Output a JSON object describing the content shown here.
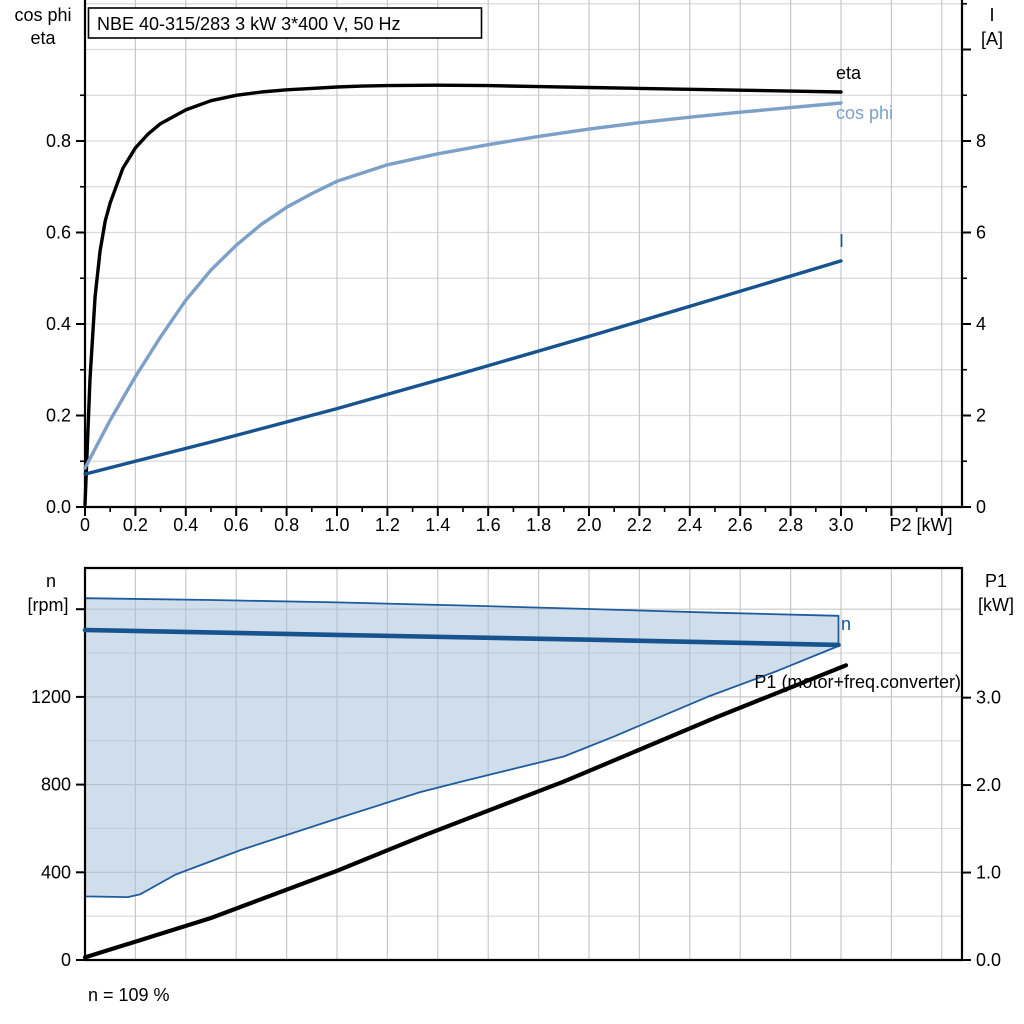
{
  "page": {
    "background": "#ffffff"
  },
  "colors": {
    "eta": "#000000",
    "cos_phi": "#7CA0C8",
    "current": "#17538E",
    "speed_line": "#17538E",
    "p1_line": "#000000",
    "envelope_fill": "rgba(164,191,216,0.52)",
    "envelope_stroke": "#1E5C9E",
    "grid_vertical": "#c8c8c8",
    "grid_horizontal_light": "#d9d9d9",
    "grid_horizontal_minor": "#dcdcdc",
    "axis": "#000000"
  },
  "chart_data": [
    {
      "id": "motor-efficiency-chart",
      "type": "line",
      "title": "NBE 40-315/283   3 kW   3*400 V, 50 Hz",
      "x_axis": {
        "label": "P2 [kW]",
        "min": 0,
        "max": 3.48,
        "major_tick_values": [
          0,
          0.2,
          0.4,
          0.6,
          0.8,
          1.0,
          1.2,
          1.4,
          1.6,
          1.8,
          2.0,
          2.2,
          2.4,
          2.6,
          2.8,
          3.0
        ],
        "major_tick_labels": [
          "0",
          "0.2",
          "0.4",
          "0.6",
          "0.8",
          "1.0",
          "1.2",
          "1.4",
          "1.6",
          "1.8",
          "2.0",
          "2.2",
          "2.4",
          "2.6",
          "2.8",
          "3.0"
        ],
        "extra_unlabeled_ticks": [
          3.2,
          3.4
        ],
        "minor_step": 0.1,
        "grid": true
      },
      "y_left": {
        "label_lines": [
          "cos phi",
          "eta"
        ],
        "min": 0,
        "max": 1.108,
        "tick_values": [
          0,
          0.2,
          0.4,
          0.6,
          0.8
        ],
        "tick_labels": [
          "0.0",
          "0.2",
          "0.4",
          "0.6",
          "0.8"
        ],
        "minor_tick_values": [
          0.1,
          0.3,
          0.5,
          0.7,
          0.9
        ],
        "grid_step": 0.1
      },
      "y_right": {
        "label_lines": [
          "I",
          "[A]"
        ],
        "min": 0,
        "max": 11.08,
        "tick_values": [
          0,
          2,
          4,
          6,
          8
        ],
        "tick_labels": [
          "0",
          "2",
          "4",
          "6",
          "8"
        ],
        "minor_tick_values": [
          1,
          3,
          5,
          7,
          9,
          11
        ],
        "extra_unlabeled_ticks": [
          10
        ]
      },
      "series": [
        {
          "name": "eta",
          "label": "eta",
          "axis": "left",
          "color": "#000000",
          "width": 3.4,
          "points": [
            [
              0,
              0.005
            ],
            [
              0.02,
              0.28
            ],
            [
              0.04,
              0.46
            ],
            [
              0.06,
              0.56
            ],
            [
              0.08,
              0.625
            ],
            [
              0.1,
              0.665
            ],
            [
              0.15,
              0.74
            ],
            [
              0.2,
              0.785
            ],
            [
              0.25,
              0.815
            ],
            [
              0.3,
              0.838
            ],
            [
              0.4,
              0.868
            ],
            [
              0.5,
              0.888
            ],
            [
              0.6,
              0.9
            ],
            [
              0.7,
              0.907
            ],
            [
              0.8,
              0.912
            ],
            [
              0.9,
              0.915
            ],
            [
              1.0,
              0.918
            ],
            [
              1.1,
              0.92
            ],
            [
              1.2,
              0.921
            ],
            [
              1.4,
              0.922
            ],
            [
              1.6,
              0.921
            ],
            [
              1.8,
              0.919
            ],
            [
              2.0,
              0.917
            ],
            [
              2.2,
              0.915
            ],
            [
              2.4,
              0.913
            ],
            [
              2.6,
              0.911
            ],
            [
              2.8,
              0.909
            ],
            [
              3.0,
              0.907
            ]
          ]
        },
        {
          "name": "cos phi",
          "label": "cos phi",
          "axis": "left",
          "color": "#7CA0C8",
          "width": 3.4,
          "points": [
            [
              0,
              0.085
            ],
            [
              0.1,
              0.19
            ],
            [
              0.2,
              0.285
            ],
            [
              0.3,
              0.372
            ],
            [
              0.4,
              0.452
            ],
            [
              0.5,
              0.518
            ],
            [
              0.6,
              0.572
            ],
            [
              0.7,
              0.618
            ],
            [
              0.8,
              0.655
            ],
            [
              0.9,
              0.685
            ],
            [
              1.0,
              0.712
            ],
            [
              1.2,
              0.748
            ],
            [
              1.4,
              0.772
            ],
            [
              1.6,
              0.792
            ],
            [
              1.8,
              0.81
            ],
            [
              2.0,
              0.826
            ],
            [
              2.2,
              0.84
            ],
            [
              2.4,
              0.852
            ],
            [
              2.6,
              0.863
            ],
            [
              2.8,
              0.873
            ],
            [
              3.0,
              0.883
            ]
          ]
        },
        {
          "name": "I",
          "label": "I",
          "axis": "right",
          "color": "#17538E",
          "width": 3.4,
          "points": [
            [
              0,
              0.72
            ],
            [
              0.5,
              1.42
            ],
            [
              1.0,
              2.15
            ],
            [
              1.5,
              2.93
            ],
            [
              2.0,
              3.73
            ],
            [
              2.5,
              4.55
            ],
            [
              3.0,
              5.38
            ]
          ]
        }
      ]
    },
    {
      "id": "speed-power-chart",
      "type": "line",
      "x_axis": {
        "label": "",
        "shared_with": "P2 [kW]",
        "min": 0,
        "max": 3.48,
        "grid": true
      },
      "y_left": {
        "label_lines": [
          "n",
          "[rpm]"
        ],
        "min": 0,
        "max": 1788,
        "tick_values": [
          0,
          400,
          800,
          1200
        ],
        "tick_labels": [
          "0",
          "400",
          "800",
          "1200"
        ],
        "unlabeled_tick_values": [
          1600
        ],
        "grid_major_values": [
          400,
          800,
          1200,
          1600
        ],
        "grid_minor_values": [
          200,
          600,
          1000,
          1400
        ]
      },
      "y_right": {
        "label_lines": [
          "P1",
          "[kW]"
        ],
        "min": 0,
        "max": 4.48,
        "tick_values": [
          0,
          1,
          2,
          3
        ],
        "tick_labels": [
          "0.0",
          "1.0",
          "2.0",
          "3.0"
        ]
      },
      "series": [
        {
          "name": "speed-envelope",
          "type": "band",
          "axis": "left",
          "fill": "rgba(164,191,216,0.52)",
          "stroke": "#1E5C9E",
          "stroke_width": 1.8,
          "upper": [
            [
              0,
              1650
            ],
            [
              0.5,
              1642
            ],
            [
              1.0,
              1631
            ],
            [
              1.5,
              1617
            ],
            [
              2.0,
              1601
            ],
            [
              2.5,
              1584
            ],
            [
              2.99,
              1570
            ]
          ],
          "lower": [
            [
              0,
              290
            ],
            [
              0.17,
              287
            ],
            [
              0.22,
              300
            ],
            [
              0.36,
              390
            ],
            [
              0.62,
              502
            ],
            [
              1.0,
              645
            ],
            [
              1.33,
              766
            ],
            [
              1.5,
              815
            ],
            [
              1.9,
              928
            ],
            [
              2.1,
              1020
            ],
            [
              2.47,
              1200
            ],
            [
              2.75,
              1320
            ],
            [
              2.99,
              1432
            ]
          ]
        },
        {
          "name": "n",
          "label": "n",
          "axis": "left",
          "color": "#17538E",
          "width": 4.6,
          "points": [
            [
              0,
              1505
            ],
            [
              1.0,
              1483
            ],
            [
              2.0,
              1461
            ],
            [
              2.99,
              1437
            ]
          ]
        },
        {
          "name": "P1",
          "label": "P1 (motor+freq.converter)",
          "axis": "right",
          "color": "#000000",
          "width": 4.2,
          "points": [
            [
              0,
              0.03
            ],
            [
              0.5,
              0.48
            ],
            [
              1.0,
              1.02
            ],
            [
              1.35,
              1.43
            ],
            [
              1.9,
              2.04
            ],
            [
              2.5,
              2.77
            ],
            [
              3.02,
              3.37
            ]
          ]
        }
      ],
      "footnote": "n = 109 %"
    }
  ]
}
